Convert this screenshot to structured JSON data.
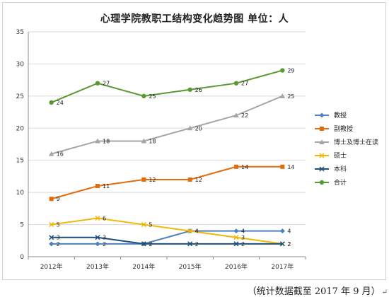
{
  "chart_data": {
    "type": "line",
    "title": "心理学院教职工结构变化趋势图  单位：人",
    "categories": [
      "2012年",
      "2013年",
      "2014年",
      "2015年",
      "2016年",
      "2017年"
    ],
    "ylim": [
      0,
      35
    ],
    "yticks": [
      0,
      5,
      10,
      15,
      20,
      25,
      30,
      35
    ],
    "grid": true,
    "legend_position": "right",
    "series": [
      {
        "name": "教授",
        "values": [
          2,
          2,
          2,
          4,
          4,
          4
        ],
        "color": "#4f81bd",
        "marker": "diamond"
      },
      {
        "name": "副教授",
        "values": [
          9,
          11,
          12,
          12,
          14,
          14
        ],
        "color": "#e36c0a",
        "marker": "square"
      },
      {
        "name": "博士及博士在读",
        "values": [
          16,
          18,
          18,
          20,
          22,
          25
        ],
        "color": "#a5a5a5",
        "marker": "triangle"
      },
      {
        "name": "硕士",
        "values": [
          5,
          6,
          5,
          4,
          3,
          2
        ],
        "color": "#f2b705",
        "marker": "x"
      },
      {
        "name": "本科",
        "values": [
          3,
          3,
          2,
          2,
          2,
          2
        ],
        "color": "#1f4e79",
        "marker": "x"
      },
      {
        "name": "合计",
        "values": [
          24,
          27,
          25,
          26,
          27,
          29
        ],
        "color": "#5a9a32",
        "marker": "circle"
      }
    ]
  },
  "footnote": "（统计数据截至 2017 年 9 月）",
  "return_symbol": "↵"
}
